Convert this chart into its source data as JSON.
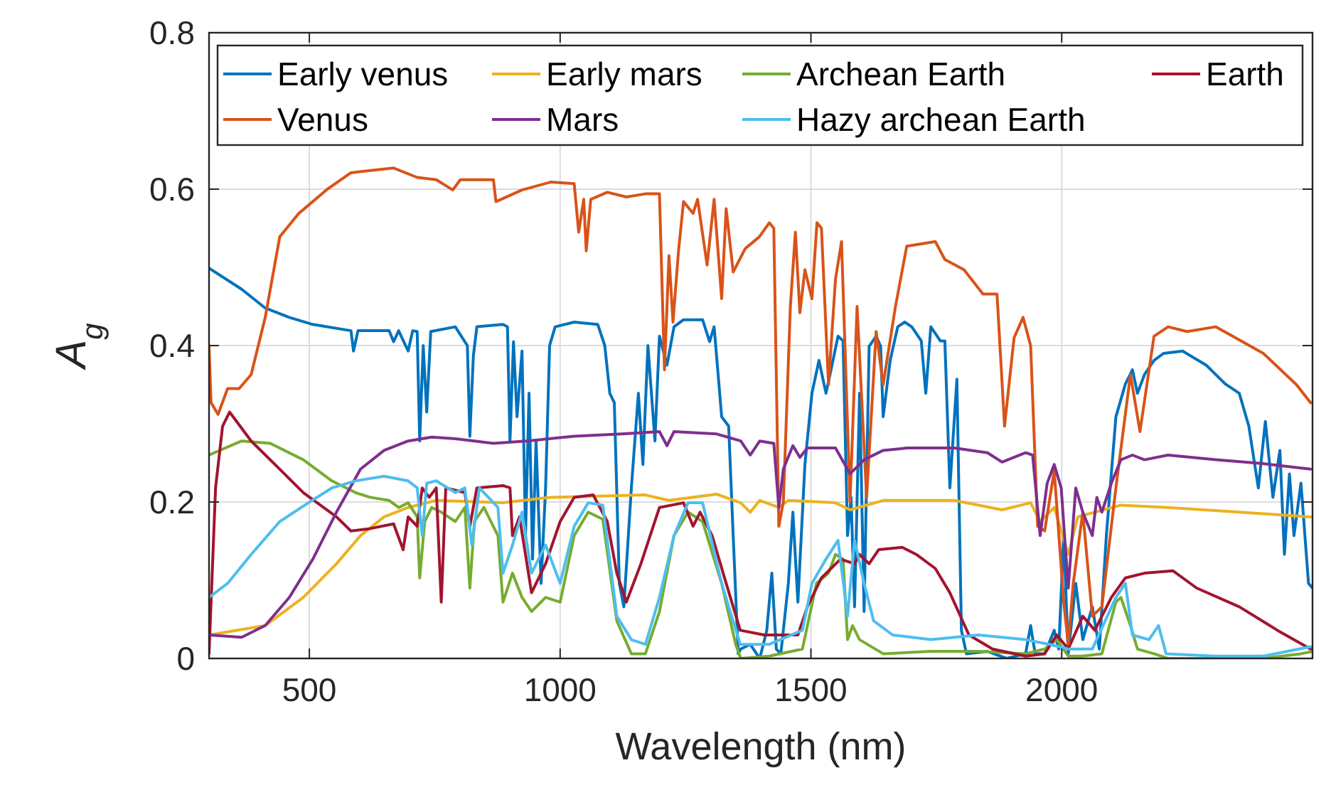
{
  "chart_data": {
    "type": "line",
    "xlabel": "Wavelength (nm)",
    "ylabel": "A$_{g}$",
    "xlim": [
      300,
      2500
    ],
    "ylim": [
      0,
      0.8
    ],
    "xticks": [
      500,
      1000,
      1500,
      2000
    ],
    "yticks": [
      0,
      0.2,
      0.4,
      0.6,
      0.8
    ],
    "grid": true,
    "legend": "top",
    "line_style": "solid",
    "marker": "none",
    "series": [
      {
        "name": "Early venus",
        "color": "#0072bd",
        "x": [
          300,
          365,
          412,
          460,
          507,
          583,
          588,
          597,
          659,
          668,
          678,
          697,
          706,
          715,
          720,
          727,
          734,
          742,
          791,
          815,
          820,
          827,
          834,
          886,
          895,
          900,
          907,
          914,
          924,
          931,
          938,
          945,
          952,
          962,
          971,
          979,
          990,
          1028,
          1075,
          1089,
          1099,
          1108,
          1118,
          1127,
          1142,
          1156,
          1165,
          1175,
          1189,
          1198,
          1213,
          1227,
          1246,
          1284,
          1298,
          1307,
          1322,
          1336,
          1345,
          1355,
          1360,
          1379,
          1398,
          1412,
          1422,
          1431,
          1440,
          1455,
          1464,
          1474,
          1488,
          1502,
          1516,
          1530,
          1540,
          1554,
          1564,
          1573,
          1580,
          1587,
          1597,
          1606,
          1616,
          1630,
          1639,
          1644,
          1658,
          1673,
          1687,
          1701,
          1720,
          1729,
          1739,
          1758,
          1767,
          1777,
          1791,
          1800,
          1810,
          1852,
          1890,
          1928,
          1938,
          1947,
          1966,
          1985,
          1994,
          2004,
          2013,
          2028,
          2042,
          2061,
          2075,
          2089,
          2108,
          2127,
          2141,
          2151,
          2165,
          2184,
          2203,
          2241,
          2288,
          2326,
          2354,
          2373,
          2392,
          2406,
          2421,
          2435,
          2444,
          2454,
          2463,
          2477,
          2492,
          2500
        ],
        "values": [
          0.499,
          0.472,
          0.448,
          0.436,
          0.427,
          0.419,
          0.393,
          0.419,
          0.419,
          0.405,
          0.419,
          0.393,
          0.419,
          0.418,
          0.278,
          0.4,
          0.315,
          0.418,
          0.424,
          0.4,
          0.284,
          0.387,
          0.424,
          0.427,
          0.424,
          0.278,
          0.405,
          0.309,
          0.393,
          0.157,
          0.339,
          0.127,
          0.278,
          0.096,
          0.218,
          0.4,
          0.424,
          0.43,
          0.427,
          0.4,
          0.339,
          0.327,
          0.096,
          0.066,
          0.218,
          0.339,
          0.248,
          0.4,
          0.278,
          0.412,
          0.375,
          0.424,
          0.433,
          0.433,
          0.405,
          0.424,
          0.309,
          0.297,
          0.157,
          0.006,
          0.012,
          0.018,
          0.0,
          0.036,
          0.109,
          0.012,
          0.006,
          0.096,
          0.187,
          0.072,
          0.248,
          0.339,
          0.381,
          0.339,
          0.369,
          0.412,
          0.406,
          0.157,
          0.206,
          0.066,
          0.339,
          0.06,
          0.399,
          0.412,
          0.399,
          0.309,
          0.381,
          0.424,
          0.43,
          0.424,
          0.406,
          0.339,
          0.424,
          0.406,
          0.406,
          0.218,
          0.357,
          0.036,
          0.006,
          0.009,
          0.0,
          0.006,
          0.042,
          0.006,
          0.006,
          0.036,
          0.012,
          0.157,
          0.006,
          0.096,
          0.024,
          0.066,
          0.012,
          0.157,
          0.309,
          0.351,
          0.369,
          0.339,
          0.363,
          0.381,
          0.39,
          0.393,
          0.375,
          0.351,
          0.339,
          0.297,
          0.218,
          0.303,
          0.206,
          0.266,
          0.133,
          0.236,
          0.157,
          0.224,
          0.096,
          0.09
        ]
      },
      {
        "name": "Early mars",
        "color": "#edb120",
        "x": [
          300,
          412,
          488,
          554,
          602,
          649,
          697,
          753,
          886,
          981,
          1170,
          1217,
          1312,
          1360,
          1379,
          1398,
          1436,
          1455,
          1549,
          1578,
          1644,
          1786,
          1881,
          1938,
          1957,
          1985,
          2013,
          2032,
          2118,
          2212,
          2354,
          2496
        ],
        "values": [
          0.03,
          0.042,
          0.078,
          0.121,
          0.157,
          0.181,
          0.193,
          0.202,
          0.199,
          0.206,
          0.209,
          0.202,
          0.21,
          0.199,
          0.187,
          0.202,
          0.193,
          0.202,
          0.199,
          0.19,
          0.202,
          0.202,
          0.19,
          0.199,
          0.175,
          0.193,
          0.133,
          0.181,
          0.196,
          0.193,
          0.187,
          0.181
        ]
      },
      {
        "name": "Archean Earth",
        "color": "#77ac30",
        "x": [
          300,
          365,
          422,
          488,
          545,
          592,
          621,
          659,
          678,
          697,
          715,
          720,
          730,
          744,
          763,
          791,
          810,
          820,
          829,
          848,
          876,
          886,
          905,
          924,
          943,
          971,
          1000,
          1028,
          1056,
          1085,
          1113,
          1142,
          1170,
          1198,
          1227,
          1255,
          1284,
          1322,
          1350,
          1360,
          1417,
          1483,
          1511,
          1535,
          1549,
          1564,
          1573,
          1583,
          1597,
          1644,
          1739,
          1834,
          1928,
          1966,
          1990,
          2013,
          2042,
          2080,
          2108,
          2118,
          2137,
          2151,
          2184,
          2212,
          2402,
          2477,
          2500
        ],
        "values": [
          0.26,
          0.278,
          0.275,
          0.254,
          0.227,
          0.212,
          0.206,
          0.202,
          0.193,
          0.199,
          0.181,
          0.103,
          0.175,
          0.193,
          0.187,
          0.175,
          0.193,
          0.09,
          0.175,
          0.193,
          0.157,
          0.072,
          0.109,
          0.078,
          0.06,
          0.078,
          0.072,
          0.157,
          0.187,
          0.178,
          0.048,
          0.006,
          0.006,
          0.06,
          0.157,
          0.187,
          0.175,
          0.096,
          0.018,
          0.0,
          0.003,
          0.012,
          0.096,
          0.109,
          0.133,
          0.127,
          0.024,
          0.042,
          0.024,
          0.006,
          0.009,
          0.009,
          0.006,
          0.012,
          0.024,
          0.003,
          0.003,
          0.006,
          0.072,
          0.078,
          0.042,
          0.012,
          0.006,
          0.0,
          0.0,
          0.006,
          0.009
        ]
      },
      {
        "name": "Earth",
        "color": "#a2142f",
        "x": [
          300,
          313,
          327,
          341,
          384,
          441,
          488,
          554,
          583,
          621,
          668,
          687,
          697,
          715,
          725,
          739,
          753,
          763,
          772,
          810,
          820,
          834,
          886,
          900,
          905,
          919,
          943,
          971,
          1000,
          1028,
          1066,
          1094,
          1113,
          1132,
          1161,
          1198,
          1246,
          1265,
          1279,
          1303,
          1331,
          1359,
          1407,
          1474,
          1493,
          1521,
          1559,
          1587,
          1597,
          1616,
          1635,
          1682,
          1710,
          1748,
          1777,
          1815,
          1862,
          1928,
          1966,
          1990,
          2013,
          2042,
          2066,
          2099,
          2127,
          2165,
          2222,
          2269,
          2354,
          2430,
          2496
        ],
        "values": [
          0.006,
          0.218,
          0.297,
          0.315,
          0.278,
          0.242,
          0.212,
          0.181,
          0.163,
          0.166,
          0.172,
          0.139,
          0.181,
          0.169,
          0.218,
          0.206,
          0.218,
          0.072,
          0.218,
          0.212,
          0.169,
          0.218,
          0.221,
          0.218,
          0.157,
          0.181,
          0.084,
          0.121,
          0.175,
          0.206,
          0.209,
          0.175,
          0.109,
          0.072,
          0.121,
          0.193,
          0.199,
          0.169,
          0.187,
          0.157,
          0.096,
          0.036,
          0.03,
          0.03,
          0.066,
          0.103,
          0.127,
          0.121,
          0.133,
          0.121,
          0.139,
          0.142,
          0.133,
          0.115,
          0.084,
          0.03,
          0.012,
          0.003,
          0.006,
          0.03,
          0.012,
          0.054,
          0.036,
          0.078,
          0.103,
          0.109,
          0.112,
          0.09,
          0.066,
          0.036,
          0.012
        ]
      },
      {
        "name": "Venus",
        "color": "#d95319",
        "x": [
          300,
          304,
          318,
          337,
          360,
          384,
          412,
          441,
          479,
          536,
          583,
          668,
          715,
          753,
          786,
          801,
          867,
          872,
          924,
          981,
          1028,
          1037,
          1047,
          1052,
          1061,
          1094,
          1132,
          1170,
          1198,
          1208,
          1217,
          1225,
          1236,
          1246,
          1265,
          1274,
          1293,
          1307,
          1322,
          1331,
          1345,
          1369,
          1397,
          1417,
          1426,
          1436,
          1445,
          1459,
          1469,
          1478,
          1488,
          1502,
          1512,
          1521,
          1535,
          1549,
          1561,
          1578,
          1592,
          1611,
          1630,
          1644,
          1668,
          1691,
          1748,
          1767,
          1805,
          1843,
          1871,
          1886,
          1905,
          1923,
          1938,
          1952,
          1966,
          1985,
          2004,
          2013,
          2023,
          2042,
          2061,
          2080,
          2108,
          2137,
          2156,
          2184,
          2212,
          2250,
          2307,
          2402,
          2468,
          2496
        ],
        "values": [
          0.4,
          0.327,
          0.312,
          0.345,
          0.345,
          0.363,
          0.436,
          0.539,
          0.569,
          0.6,
          0.621,
          0.627,
          0.615,
          0.612,
          0.599,
          0.612,
          0.612,
          0.584,
          0.599,
          0.609,
          0.607,
          0.545,
          0.587,
          0.521,
          0.587,
          0.596,
          0.59,
          0.594,
          0.594,
          0.369,
          0.515,
          0.43,
          0.521,
          0.584,
          0.569,
          0.587,
          0.503,
          0.587,
          0.46,
          0.575,
          0.494,
          0.524,
          0.539,
          0.557,
          0.55,
          0.169,
          0.2,
          0.45,
          0.545,
          0.442,
          0.497,
          0.46,
          0.557,
          0.55,
          0.35,
          0.485,
          0.533,
          0.2,
          0.45,
          0.206,
          0.418,
          0.35,
          0.448,
          0.527,
          0.533,
          0.51,
          0.497,
          0.466,
          0.466,
          0.297,
          0.41,
          0.436,
          0.4,
          0.169,
          0.163,
          0.24,
          0.072,
          0.018,
          0.096,
          0.187,
          0.054,
          0.066,
          0.218,
          0.363,
          0.29,
          0.412,
          0.424,
          0.418,
          0.424,
          0.39,
          0.35,
          0.327
        ]
      },
      {
        "name": "Mars",
        "color": "#7e2f8e",
        "x": [
          300,
          365,
          412,
          460,
          507,
          554,
          602,
          649,
          697,
          744,
          791,
          867,
          933,
          1028,
          1123,
          1198,
          1213,
          1227,
          1312,
          1360,
          1379,
          1398,
          1426,
          1436,
          1445,
          1464,
          1478,
          1493,
          1549,
          1578,
          1606,
          1644,
          1691,
          1786,
          1852,
          1881,
          1928,
          1942,
          1957,
          1971,
          1985,
          1999,
          2013,
          2028,
          2042,
          2061,
          2070,
          2080,
          2099,
          2118,
          2141,
          2165,
          2212,
          2307,
          2402,
          2496
        ],
        "values": [
          0.03,
          0.027,
          0.042,
          0.078,
          0.127,
          0.187,
          0.242,
          0.266,
          0.278,
          0.283,
          0.281,
          0.275,
          0.278,
          0.284,
          0.287,
          0.29,
          0.272,
          0.29,
          0.287,
          0.278,
          0.26,
          0.278,
          0.275,
          0.193,
          0.242,
          0.272,
          0.257,
          0.269,
          0.269,
          0.236,
          0.254,
          0.266,
          0.269,
          0.269,
          0.263,
          0.251,
          0.263,
          0.26,
          0.157,
          0.224,
          0.248,
          0.218,
          0.09,
          0.218,
          0.187,
          0.157,
          0.206,
          0.187,
          0.224,
          0.254,
          0.26,
          0.254,
          0.26,
          0.254,
          0.249,
          0.242
        ]
      },
      {
        "name": "Hazy archean Earth",
        "color": "#4dbeee",
        "x": [
          300,
          337,
          384,
          441,
          498,
          545,
          592,
          649,
          697,
          715,
          725,
          734,
          753,
          791,
          810,
          824,
          839,
          876,
          886,
          905,
          924,
          943,
          971,
          1000,
          1028,
          1056,
          1085,
          1113,
          1142,
          1170,
          1198,
          1227,
          1255,
          1284,
          1322,
          1359,
          1417,
          1483,
          1502,
          1530,
          1554,
          1573,
          1587,
          1606,
          1625,
          1663,
          1739,
          1834,
          1928,
          1976,
          2013,
          2061,
          2108,
          2127,
          2141,
          2174,
          2193,
          2208,
          2307,
          2402,
          2496
        ],
        "values": [
          0.078,
          0.096,
          0.133,
          0.175,
          0.199,
          0.218,
          0.227,
          0.233,
          0.227,
          0.218,
          0.157,
          0.224,
          0.227,
          0.212,
          0.218,
          0.145,
          0.218,
          0.193,
          0.109,
          0.145,
          0.187,
          0.109,
          0.145,
          0.096,
          0.169,
          0.199,
          0.196,
          0.054,
          0.024,
          0.018,
          0.078,
          0.157,
          0.199,
          0.199,
          0.096,
          0.018,
          0.018,
          0.036,
          0.096,
          0.127,
          0.151,
          0.054,
          0.151,
          0.096,
          0.048,
          0.03,
          0.024,
          0.03,
          0.024,
          0.018,
          0.012,
          0.012,
          0.078,
          0.096,
          0.03,
          0.024,
          0.042,
          0.006,
          0.003,
          0.003,
          0.015
        ]
      }
    ]
  }
}
